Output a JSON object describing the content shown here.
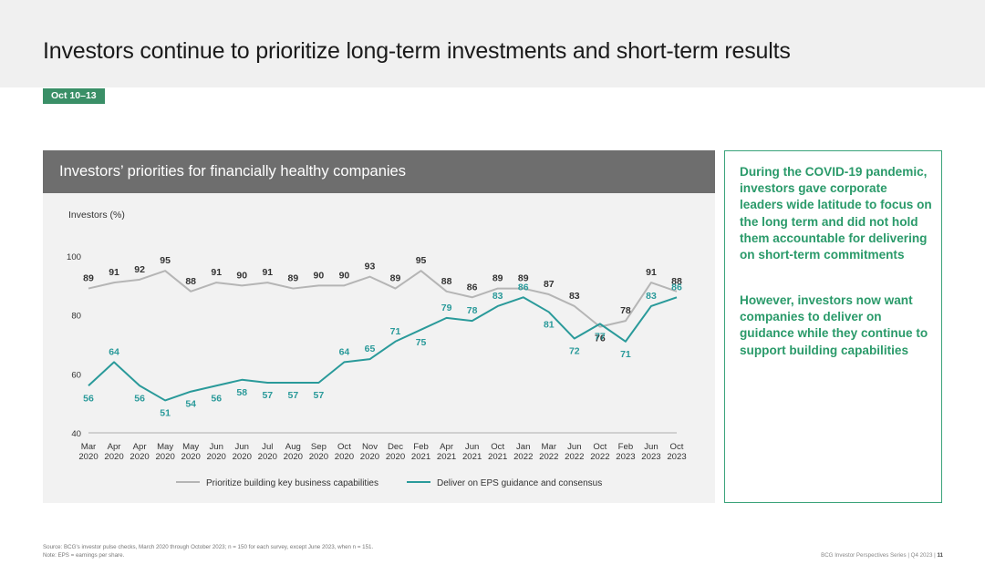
{
  "page": {
    "title": "Investors continue to prioritize long-term investments and short-term results",
    "date_badge": "Oct 10–13"
  },
  "sidebar": {
    "paragraph1": "During the COVID-19 pandemic, investors gave corporate leaders wide latitude to focus on the long term and did not hold them accountable for delivering on short-term commitments",
    "paragraph2": "However, investors now want companies to deliver on guidance while they continue to support building capabilities"
  },
  "footer": {
    "source": "Source: BCG's investor pulse checks, March 2020 through October 2023; n = 150 for each survey, except June 2023, when n = 151.",
    "note": "Note: EPS = earnings per share.",
    "series_label": "BCG Investor Perspectives Series | Q4 2023 |",
    "page_number": "11"
  },
  "colors": {
    "series_a": "#b5b5b5",
    "series_b": "#2a9a9a",
    "accent": "#3a8f67"
  },
  "chart_data": {
    "type": "line",
    "title": "Investors’ priorities for financially healthy companies",
    "ylabel": "Investors (%)",
    "xlabel": "",
    "ylim": [
      40,
      100
    ],
    "yticks": [
      40,
      60,
      80,
      100
    ],
    "grid": false,
    "legend_position": "bottom",
    "categories": [
      [
        "Mar",
        "2020"
      ],
      [
        "Apr",
        "2020"
      ],
      [
        "Apr",
        "2020"
      ],
      [
        "May",
        "2020"
      ],
      [
        "May",
        "2020"
      ],
      [
        "Jun",
        "2020"
      ],
      [
        "Jun",
        "2020"
      ],
      [
        "Jul",
        "2020"
      ],
      [
        "Aug",
        "2020"
      ],
      [
        "Sep",
        "2020"
      ],
      [
        "Oct",
        "2020"
      ],
      [
        "Nov",
        "2020"
      ],
      [
        "Dec",
        "2020"
      ],
      [
        "Feb",
        "2021"
      ],
      [
        "Apr",
        "2021"
      ],
      [
        "Jun",
        "2021"
      ],
      [
        "Oct",
        "2021"
      ],
      [
        "Jan",
        "2022"
      ],
      [
        "Mar",
        "2022"
      ],
      [
        "Jun",
        "2022"
      ],
      [
        "Oct",
        "2022"
      ],
      [
        "Feb",
        "2023"
      ],
      [
        "Jun",
        "2023"
      ],
      [
        "Oct",
        "2023"
      ]
    ],
    "series": [
      {
        "name": "Prioritize building key business capabilities",
        "values": [
          89,
          91,
          92,
          95,
          88,
          91,
          90,
          91,
          89,
          90,
          90,
          93,
          89,
          95,
          88,
          86,
          89,
          89,
          87,
          83,
          76,
          78,
          91,
          88
        ]
      },
      {
        "name": "Deliver on EPS guidance and consensus",
        "values": [
          56,
          64,
          56,
          51,
          54,
          56,
          58,
          57,
          57,
          57,
          64,
          65,
          71,
          75,
          79,
          78,
          83,
          86,
          81,
          72,
          77,
          71,
          83,
          86
        ]
      }
    ]
  }
}
